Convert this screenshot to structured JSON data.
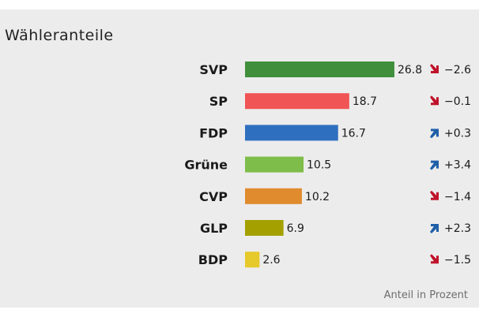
{
  "chart_data": {
    "type": "bar",
    "orientation": "horizontal",
    "title": "Wähleranteile",
    "footnote": "Anteil in Prozent",
    "categories": [
      "SVP",
      "SP",
      "FDP",
      "Grüne",
      "CVP",
      "GLP",
      "BDP"
    ],
    "values": [
      26.8,
      18.7,
      16.7,
      10.5,
      10.2,
      6.9,
      2.6
    ],
    "value_labels": [
      "26.8",
      "18.7",
      "16.7",
      "10.5",
      "10.2",
      "6.9",
      "2.6"
    ],
    "colors": [
      "#3f8f3c",
      "#f05454",
      "#2f6fbf",
      "#7ebd4a",
      "#e08b2e",
      "#a3a000",
      "#e6c92a"
    ],
    "changes": [
      {
        "label": "−2.6",
        "direction": "down"
      },
      {
        "label": "−0.1",
        "direction": "down"
      },
      {
        "label": "+0.3",
        "direction": "up"
      },
      {
        "label": "+3.4",
        "direction": "up"
      },
      {
        "label": "−1.4",
        "direction": "down"
      },
      {
        "label": "+2.3",
        "direction": "up"
      },
      {
        "label": "−1.5",
        "direction": "down"
      }
    ],
    "arrow_colors": {
      "down": "#c0122a",
      "up": "#1f5fa8"
    }
  }
}
